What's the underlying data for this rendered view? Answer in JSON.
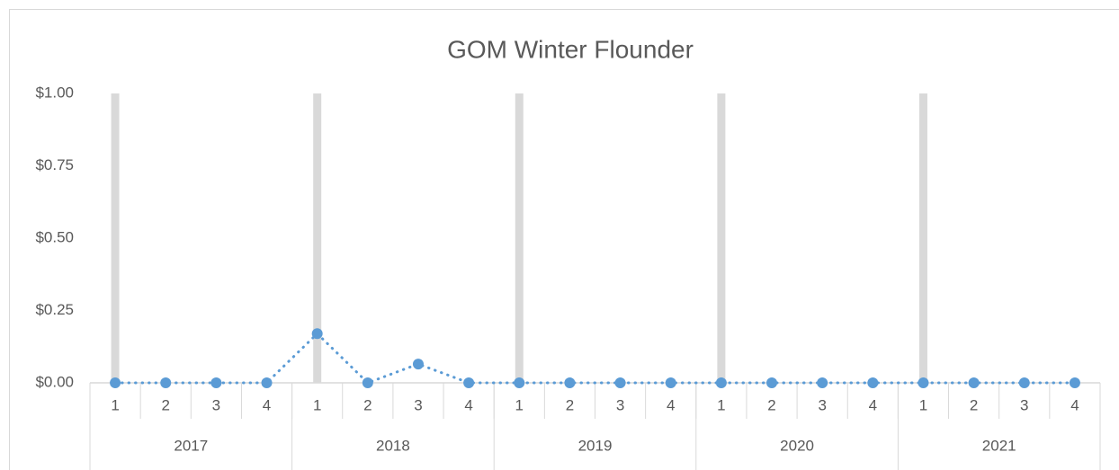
{
  "chart_data": {
    "type": "line",
    "title": "GOM Winter Flounder",
    "categories": [
      "1",
      "2",
      "3",
      "4",
      "1",
      "2",
      "3",
      "4",
      "1",
      "2",
      "3",
      "4",
      "1",
      "2",
      "3",
      "4",
      "1",
      "2",
      "3",
      "4"
    ],
    "groups": [
      {
        "label": "2017",
        "span": 4
      },
      {
        "label": "2018",
        "span": 4
      },
      {
        "label": "2019",
        "span": 4
      },
      {
        "label": "2020",
        "span": 4
      },
      {
        "label": "2021",
        "span": 4
      }
    ],
    "series": [
      {
        "type": "bar",
        "color": "#d9d9d9",
        "values": [
          1,
          null,
          null,
          null,
          1,
          null,
          null,
          null,
          1,
          null,
          null,
          null,
          1,
          null,
          null,
          null,
          1,
          null,
          null,
          null
        ]
      },
      {
        "type": "line",
        "color": "#5b9bd5",
        "line_style": "dotted",
        "markers": true,
        "values": [
          0,
          0,
          0,
          0,
          0.17,
          0,
          0.065,
          0,
          0,
          0,
          0,
          0,
          0,
          0,
          0,
          0,
          0,
          0,
          0,
          0
        ]
      }
    ],
    "ylim": [
      0,
      1
    ],
    "yticks": [
      {
        "value": 0,
        "label": "$0.00"
      },
      {
        "value": 0.25,
        "label": "$0.25"
      },
      {
        "value": 0.5,
        "label": "$0.50"
      },
      {
        "value": 0.75,
        "label": "$0.75"
      },
      {
        "value": 1,
        "label": "$1.00"
      }
    ],
    "grid": false
  }
}
